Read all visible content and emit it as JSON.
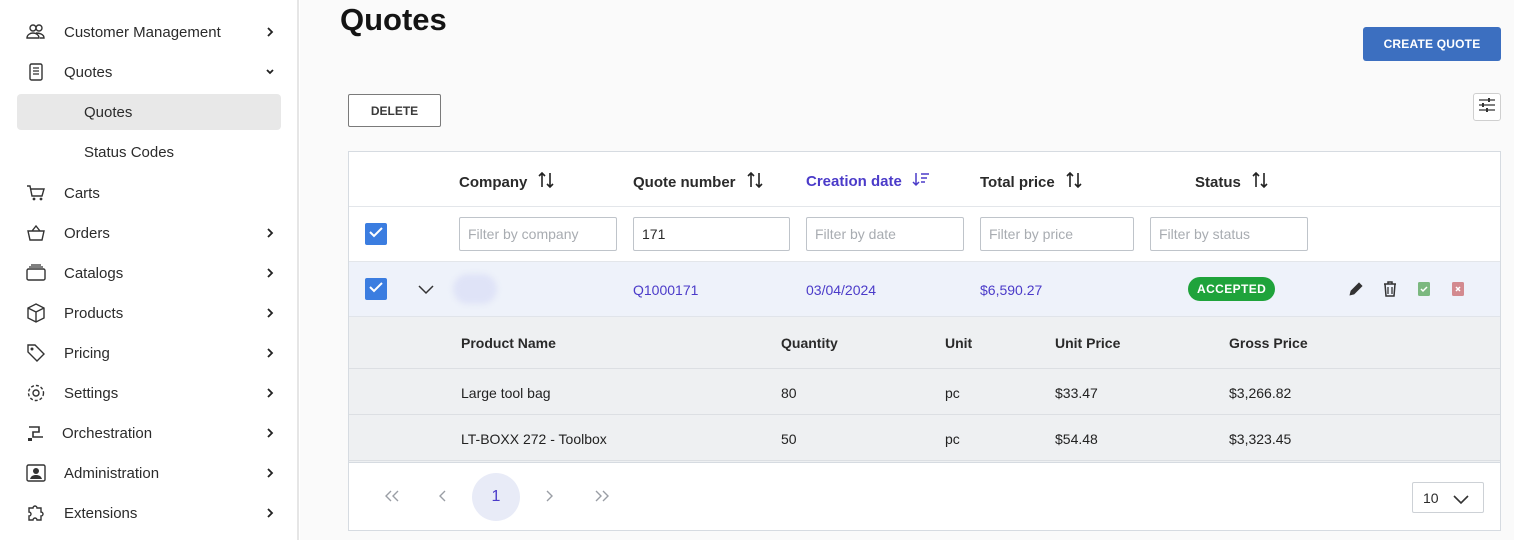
{
  "sidebar": {
    "items": [
      {
        "label": "Customer Management",
        "icon": "users-icon",
        "chevron": "right"
      },
      {
        "label": "Quotes",
        "icon": "document-icon",
        "chevron": "down"
      },
      {
        "label": "Carts",
        "icon": "cart-icon",
        "chevron": "none"
      },
      {
        "label": "Orders",
        "icon": "basket-icon",
        "chevron": "right"
      },
      {
        "label": "Catalogs",
        "icon": "catalog-icon",
        "chevron": "right"
      },
      {
        "label": "Products",
        "icon": "box-icon",
        "chevron": "right"
      },
      {
        "label": "Pricing",
        "icon": "tag-icon",
        "chevron": "right"
      },
      {
        "label": "Settings",
        "icon": "gear-icon",
        "chevron": "right"
      },
      {
        "label": "Orchestration",
        "icon": "orchestration-icon",
        "chevron": "right"
      },
      {
        "label": "Administration",
        "icon": "admin-icon",
        "chevron": "right"
      },
      {
        "label": "Extensions",
        "icon": "puzzle-icon",
        "chevron": "right"
      }
    ],
    "subitems": [
      {
        "label": "Quotes",
        "active": true
      },
      {
        "label": "Status Codes",
        "active": false
      }
    ]
  },
  "page": {
    "title": "Quotes",
    "create_label": "CREATE QUOTE",
    "delete_label": "DELETE"
  },
  "table": {
    "columns": [
      {
        "label": "Company",
        "sorted": false
      },
      {
        "label": "Quote number",
        "sorted": false
      },
      {
        "label": "Creation date",
        "sorted": true
      },
      {
        "label": "Total price",
        "sorted": false
      },
      {
        "label": "Status",
        "sorted": false
      }
    ],
    "filters": [
      {
        "placeholder": "Filter by company",
        "value": ""
      },
      {
        "placeholder": "",
        "value": "171"
      },
      {
        "placeholder": "Filter by date",
        "value": ""
      },
      {
        "placeholder": "Filter by price",
        "value": ""
      },
      {
        "placeholder": "Filter by status",
        "value": ""
      }
    ],
    "row": {
      "quote_number": "Q1000171",
      "creation_date": "03/04/2024",
      "total_price": "$6,590.27",
      "status": "ACCEPTED"
    },
    "line_items": {
      "headers": [
        "Product Name",
        "Quantity",
        "Unit",
        "Unit Price",
        "Gross Price"
      ],
      "rows": [
        [
          "Large tool bag",
          "80",
          "pc",
          "$33.47",
          "$3,266.82"
        ],
        [
          "LT-BOXX 272 - Toolbox",
          "50",
          "pc",
          "$54.48",
          "$3,323.45"
        ]
      ]
    }
  },
  "pagination": {
    "current_page": "1",
    "page_size": "10"
  },
  "colors": {
    "accent": "#3c6fc0",
    "link": "#4b3bc9",
    "status_accepted": "#1fa33b",
    "checkbox": "#3b7de0"
  }
}
